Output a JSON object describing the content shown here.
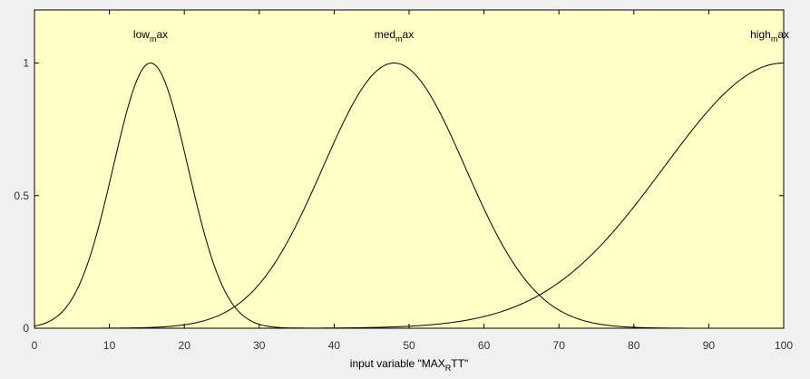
{
  "chart_data": {
    "type": "line",
    "x_range": [
      0,
      100
    ],
    "y_range": [
      0,
      1.2
    ],
    "xlabel_parts": [
      "input variable \"MAX",
      "R",
      "TT\""
    ],
    "x_ticks": [
      0,
      10,
      20,
      30,
      40,
      50,
      60,
      70,
      80,
      90,
      100
    ],
    "y_ticks": [
      {
        "value": 0,
        "label": "0"
      },
      {
        "value": 0.5,
        "label": "0.5"
      },
      {
        "value": 1,
        "label": "1"
      }
    ],
    "grid": false,
    "series": [
      {
        "name_parts": [
          "low",
          "m",
          "ax"
        ],
        "kind": "gaussian",
        "center": 15.5,
        "sigma": 5.0
      },
      {
        "name_parts": [
          "med",
          "m",
          "ax"
        ],
        "kind": "gaussian",
        "center": 48,
        "sigma": 9.5
      },
      {
        "name_parts": [
          "high",
          "m",
          "ax"
        ],
        "kind": "gaussian",
        "center": 100,
        "sigma": 16
      }
    ],
    "colors": {
      "plot_background": "#ffffc6",
      "figure_background": "#f0f0f0",
      "line": "#000000"
    }
  }
}
